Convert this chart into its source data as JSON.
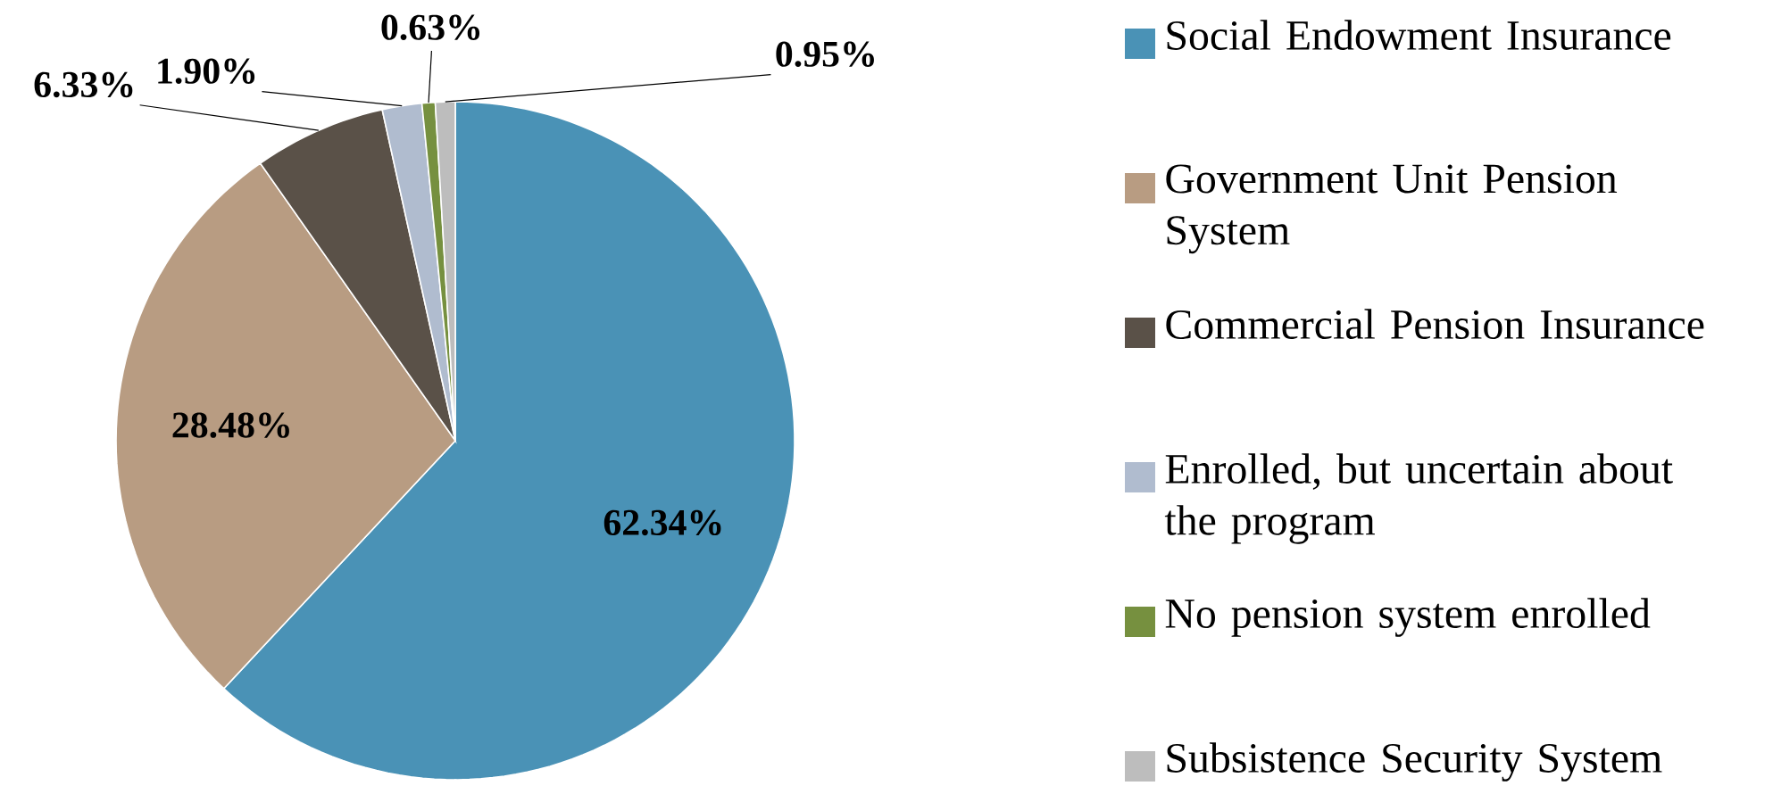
{
  "chart_data": {
    "type": "pie",
    "categories": [
      "Social Endowment Insurance",
      "Government Unit Pension System",
      "Commercial Pension Insurance",
      "Enrolled, but uncertain about the program",
      "No pension system enrolled",
      "Subsistence Security System"
    ],
    "values": [
      62.34,
      28.48,
      6.33,
      1.9,
      0.63,
      0.95
    ],
    "colors": [
      "#4a92b6",
      "#b89c82",
      "#5a5148",
      "#b0bccf",
      "#76903f",
      "#bdbdbd"
    ],
    "value_labels": [
      "62.34%",
      "28.48%",
      "6.33%",
      "1.90%",
      "0.63%",
      "0.95%"
    ],
    "legend": "right"
  }
}
